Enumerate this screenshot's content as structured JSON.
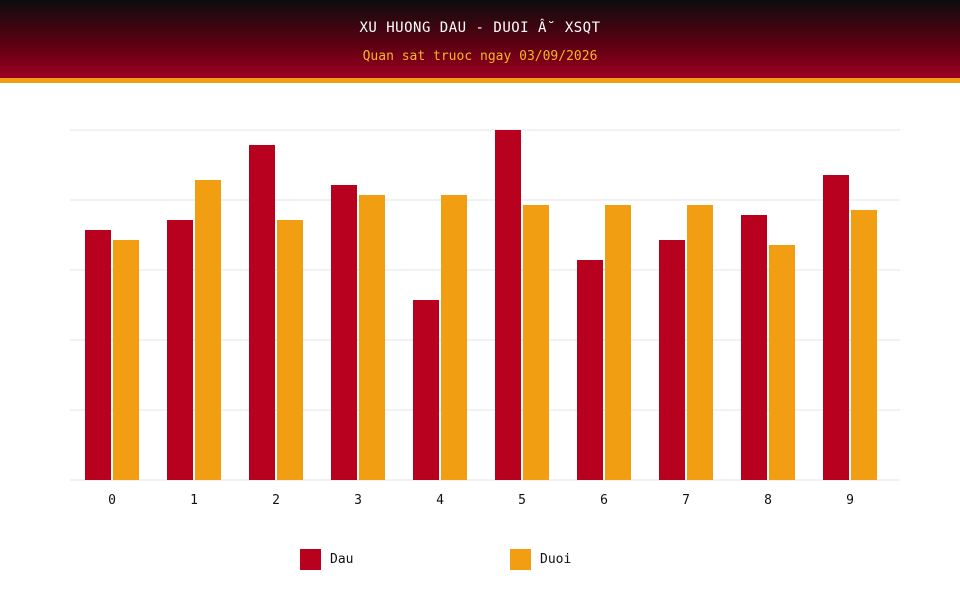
{
  "header": {
    "title": "XU HUONG DAU - DUOI Â˘ XSQT",
    "subtitle": "Quan sat truoc ngay 03/09/2026"
  },
  "colors": {
    "dau": "#b8001f",
    "duoi": "#f29e12",
    "grid": "#e6e6e6"
  },
  "chart_data": {
    "type": "bar",
    "categories": [
      "0",
      "1",
      "2",
      "3",
      "4",
      "5",
      "6",
      "7",
      "8",
      "9"
    ],
    "series": [
      {
        "name": "Dau",
        "values": [
          25,
          26,
          33.5,
          29.5,
          18,
          35,
          22,
          24,
          26.5,
          30.5
        ]
      },
      {
        "name": "Duoi",
        "values": [
          24,
          30,
          26,
          28.5,
          28.5,
          27.5,
          27.5,
          27.5,
          23.5,
          27
        ]
      }
    ],
    "ylim": [
      0,
      35
    ],
    "grid": true,
    "legend": "bottom"
  }
}
